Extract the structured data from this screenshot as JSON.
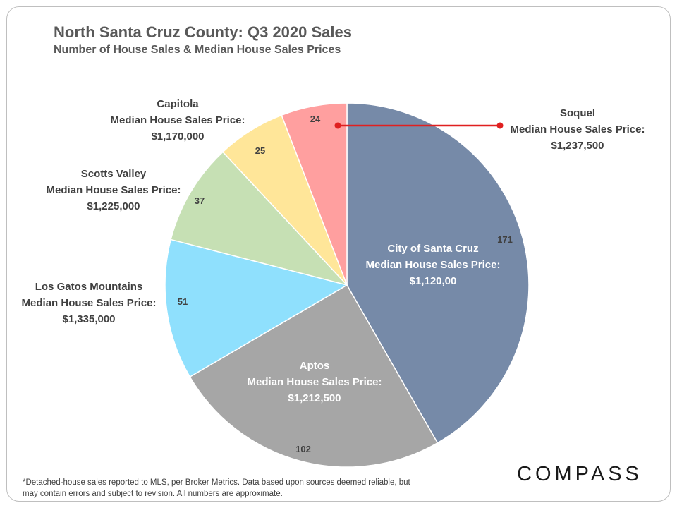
{
  "header": {
    "title": "North Santa Cruz County: Q3 2020 Sales",
    "subtitle": "Number of House Sales & Median House Sales Prices"
  },
  "chart_data": {
    "type": "pie",
    "title": "North Santa Cruz County: Q3 2020 Sales",
    "subtitle": "Number of House Sales & Median House Sales Prices",
    "slices": [
      {
        "name": "City of Santa Cruz",
        "value": 171,
        "value_label": "171",
        "price_label": "Median House Sales Price:",
        "price": "$1,120,00",
        "color": "#768aa8"
      },
      {
        "name": "Aptos",
        "value": 102,
        "value_label": "102",
        "price_label": "Median House Sales Price:",
        "price": "$1,212,500",
        "color": "#a6a6a6"
      },
      {
        "name": "Los Gatos Mountains",
        "value": 51,
        "value_label": "51",
        "price_label": "Median House Sales Price:",
        "price": "$1,335,000",
        "color": "#8fe0fd"
      },
      {
        "name": "Scotts Valley",
        "value": 37,
        "value_label": "37",
        "price_label": "Median House Sales Price:",
        "price": "$1,225,000",
        "color": "#c6e0b4"
      },
      {
        "name": "Capitola",
        "value": 25,
        "value_label": "25",
        "price_label": "Median House Sales Price:",
        "price": "$1,170,000",
        "color": "#ffe699"
      },
      {
        "name": "Soquel",
        "value": 24,
        "value_label": "24",
        "price_label": "Median House Sales Price:",
        "price": "$1,237,500",
        "color": "#ff9f9f"
      }
    ],
    "legend": "none",
    "callout_color": "#e02020"
  },
  "footnote": "*Detached-house sales reported to MLS, per Broker Metrics. Data based upon sources deemed reliable, but may contain errors and subject to revision. All numbers are approximate.",
  "logo": "COMPASS"
}
